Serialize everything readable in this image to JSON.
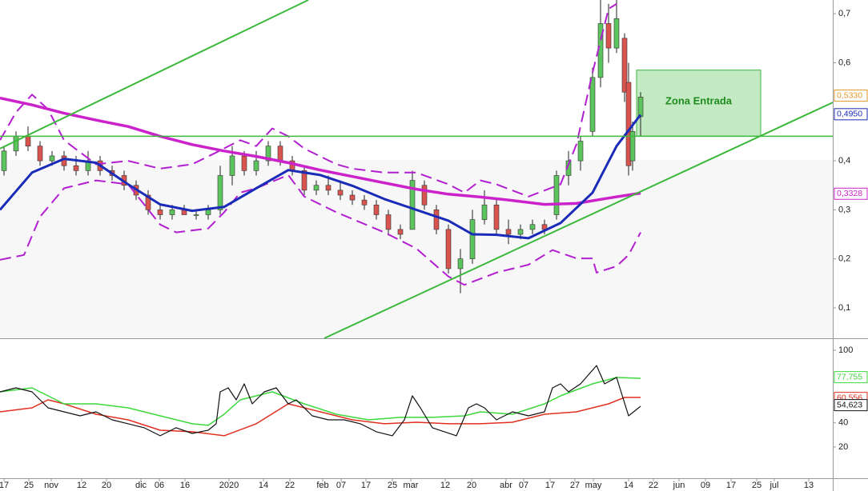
{
  "chart_data": [
    {
      "type": "candlestick",
      "xlim": [
        0,
        208
      ],
      "ylim": [
        0.038,
        0.728
      ],
      "yticks": [
        {
          "value": 0.7,
          "label": "0,7"
        },
        {
          "value": 0.6,
          "label": "0,6"
        },
        {
          "value": 0.4,
          "label": "0,4"
        },
        {
          "value": 0.3,
          "label": "0,3"
        },
        {
          "value": 0.2,
          "label": "0,2"
        },
        {
          "value": 0.1,
          "label": "0,1"
        }
      ],
      "candles": {
        "up_color": "#5cc45c",
        "down_color": "#d9534f",
        "x": [
          1,
          4,
          7,
          10,
          13,
          16,
          19,
          22,
          25,
          28,
          31,
          34,
          37,
          40,
          43,
          46,
          49,
          52,
          55,
          58,
          61,
          64,
          67,
          70,
          73,
          76,
          79,
          82,
          85,
          88,
          91,
          94,
          97,
          100,
          103,
          106,
          109,
          112,
          115,
          118,
          121,
          124,
          127,
          130,
          133,
          136,
          139,
          142,
          145,
          148,
          150,
          152,
          154,
          156,
          157,
          158,
          160
        ],
        "open": [
          0.38,
          0.42,
          0.45,
          0.43,
          0.4,
          0.41,
          0.39,
          0.38,
          0.4,
          0.38,
          0.37,
          0.35,
          0.33,
          0.3,
          0.29,
          0.3,
          0.29,
          0.29,
          0.3,
          0.37,
          0.41,
          0.38,
          0.4,
          0.43,
          0.4,
          0.38,
          0.34,
          0.35,
          0.34,
          0.33,
          0.32,
          0.31,
          0.29,
          0.26,
          0.26,
          0.35,
          0.3,
          0.26,
          0.18,
          0.2,
          0.28,
          0.31,
          0.26,
          0.25,
          0.26,
          0.27,
          0.29,
          0.37,
          0.4,
          0.46,
          0.57,
          0.68,
          0.63,
          0.65,
          0.56,
          0.4,
          0.49
        ],
        "high": [
          0.43,
          0.46,
          0.47,
          0.44,
          0.42,
          0.42,
          0.41,
          0.42,
          0.41,
          0.39,
          0.38,
          0.36,
          0.34,
          0.31,
          0.31,
          0.31,
          0.3,
          0.31,
          0.39,
          0.43,
          0.42,
          0.42,
          0.44,
          0.44,
          0.41,
          0.39,
          0.36,
          0.37,
          0.36,
          0.34,
          0.33,
          0.32,
          0.3,
          0.27,
          0.38,
          0.36,
          0.31,
          0.27,
          0.22,
          0.3,
          0.34,
          0.32,
          0.28,
          0.27,
          0.28,
          0.28,
          0.38,
          0.42,
          0.45,
          0.59,
          0.73,
          0.72,
          0.74,
          0.66,
          0.6,
          0.48,
          0.54
        ],
        "low": [
          0.37,
          0.41,
          0.42,
          0.39,
          0.39,
          0.38,
          0.37,
          0.37,
          0.37,
          0.36,
          0.34,
          0.32,
          0.29,
          0.28,
          0.28,
          0.29,
          0.28,
          0.28,
          0.29,
          0.35,
          0.37,
          0.37,
          0.39,
          0.39,
          0.37,
          0.33,
          0.33,
          0.33,
          0.32,
          0.31,
          0.3,
          0.28,
          0.25,
          0.24,
          0.26,
          0.3,
          0.25,
          0.17,
          0.13,
          0.19,
          0.27,
          0.25,
          0.23,
          0.24,
          0.25,
          0.25,
          0.28,
          0.35,
          0.38,
          0.45,
          0.55,
          0.6,
          0.62,
          0.52,
          0.37,
          0.38,
          0.45
        ],
        "close": [
          0.42,
          0.45,
          0.43,
          0.4,
          0.41,
          0.39,
          0.38,
          0.4,
          0.38,
          0.37,
          0.35,
          0.33,
          0.3,
          0.29,
          0.3,
          0.29,
          0.29,
          0.3,
          0.37,
          0.41,
          0.38,
          0.4,
          0.43,
          0.4,
          0.38,
          0.34,
          0.35,
          0.34,
          0.33,
          0.32,
          0.31,
          0.29,
          0.26,
          0.25,
          0.36,
          0.31,
          0.26,
          0.18,
          0.2,
          0.28,
          0.31,
          0.26,
          0.25,
          0.26,
          0.27,
          0.26,
          0.37,
          0.4,
          0.44,
          0.57,
          0.68,
          0.63,
          0.69,
          0.54,
          0.39,
          0.46,
          0.53
        ]
      },
      "series": [
        {
          "color": "#b21fd0",
          "width": 2,
          "dash": true,
          "x": [
            0,
            4,
            8,
            12,
            16,
            24,
            32,
            40,
            48,
            54,
            60,
            64,
            68,
            72,
            76,
            84,
            88,
            96,
            104,
            112,
            116,
            120,
            124,
            132,
            140,
            144,
            148,
            152,
            154
          ],
          "values": [
            0.442,
            0.499,
            0.535,
            0.505,
            0.442,
            0.393,
            0.4,
            0.384,
            0.393,
            0.417,
            0.442,
            0.43,
            0.466,
            0.45,
            0.425,
            0.393,
            0.384,
            0.376,
            0.376,
            0.352,
            0.335,
            0.36,
            0.352,
            0.327,
            0.352,
            0.434,
            0.58,
            0.71,
            0.72
          ]
        },
        {
          "color": "#b21fd0",
          "width": 2,
          "dash": true,
          "x": [
            0,
            6,
            10,
            16,
            24,
            32,
            40,
            44,
            52,
            56,
            60,
            64,
            72,
            76,
            84,
            96,
            104,
            112,
            116,
            124,
            132,
            138,
            144,
            148,
            149,
            154,
            157,
            160
          ],
          "values": [
            0.198,
            0.208,
            0.286,
            0.344,
            0.36,
            0.352,
            0.27,
            0.254,
            0.262,
            0.295,
            0.335,
            0.344,
            0.371,
            0.327,
            0.295,
            0.254,
            0.221,
            0.164,
            0.147,
            0.172,
            0.188,
            0.218,
            0.201,
            0.201,
            0.172,
            0.185,
            0.208,
            0.254
          ]
        },
        {
          "color": "#cc22cc",
          "width": 3.5,
          "dash": false,
          "x": [
            0,
            8,
            16,
            24,
            32,
            40,
            48,
            56,
            64,
            72,
            80,
            88,
            96,
            104,
            112,
            120,
            128,
            136,
            144,
            152,
            160
          ],
          "values": [
            0.528,
            0.514,
            0.497,
            0.483,
            0.47,
            0.45,
            0.433,
            0.42,
            0.409,
            0.396,
            0.381,
            0.368,
            0.355,
            0.342,
            0.332,
            0.326,
            0.319,
            0.311,
            0.313,
            0.324,
            0.334
          ]
        },
        {
          "color": "#1a2bb8",
          "width": 3,
          "dash": false,
          "x": [
            0,
            8,
            16,
            24,
            32,
            40,
            48,
            56,
            64,
            72,
            80,
            88,
            96,
            104,
            112,
            118,
            124,
            132,
            140,
            148,
            154,
            160
          ],
          "values": [
            0.3,
            0.376,
            0.404,
            0.396,
            0.352,
            0.311,
            0.298,
            0.306,
            0.344,
            0.381,
            0.371,
            0.349,
            0.322,
            0.3,
            0.278,
            0.25,
            0.249,
            0.242,
            0.273,
            0.335,
            0.43,
            0.494
          ]
        },
        {
          "color": "#3cb83c",
          "width": 2,
          "dash": false,
          "x": [
            0,
            77
          ],
          "values": [
            0.425,
            0.728
          ]
        },
        {
          "color": "#3cb83c",
          "width": 2,
          "dash": false,
          "x": [
            81,
            208
          ],
          "values": [
            0.038,
            0.519
          ]
        },
        {
          "color": "#3cb83c",
          "width": 1.5,
          "dash": false,
          "x": [
            0,
            208
          ],
          "values": [
            0.45,
            0.45
          ]
        }
      ],
      "zone": {
        "label": "Zona Entrada",
        "x": [
          159,
          190
        ],
        "y": [
          0.45,
          0.585
        ],
        "color": "#3cb83c"
      },
      "price_tags": [
        {
          "label": "0,5330",
          "value": 0.533,
          "color": "#e09a2a"
        },
        {
          "label": "0,4950",
          "value": 0.495,
          "color": "#1a2bb8"
        },
        {
          "label": "0,3328",
          "value": 0.3328,
          "color": "#cc22cc"
        }
      ]
    },
    {
      "type": "line",
      "xlim": [
        0,
        208
      ],
      "ylim": [
        -5.8,
        108.6
      ],
      "yticks": [
        100,
        40,
        20
      ],
      "xticks": [
        {
          "value": 1,
          "label": "17"
        },
        {
          "value": 7.2,
          "label": "25"
        },
        {
          "value": 12.8,
          "label": "nov"
        },
        {
          "value": 20.4,
          "label": "12"
        },
        {
          "value": 26.6,
          "label": "20"
        },
        {
          "value": 35.2,
          "label": "dic"
        },
        {
          "value": 39.8,
          "label": "06"
        },
        {
          "value": 46.2,
          "label": "16"
        },
        {
          "value": 57.2,
          "label": "2020"
        },
        {
          "value": 65.8,
          "label": "14"
        },
        {
          "value": 72.4,
          "label": "22"
        },
        {
          "value": 80.6,
          "label": "feb"
        },
        {
          "value": 85.2,
          "label": "07"
        },
        {
          "value": 91.4,
          "label": "17"
        },
        {
          "value": 98,
          "label": "25"
        },
        {
          "value": 102.6,
          "label": "mar"
        },
        {
          "value": 111.2,
          "label": "12"
        },
        {
          "value": 117.8,
          "label": "20"
        },
        {
          "value": 126.4,
          "label": "abr"
        },
        {
          "value": 130.8,
          "label": "07"
        },
        {
          "value": 137.4,
          "label": "17"
        },
        {
          "value": 143.6,
          "label": "27"
        },
        {
          "value": 148.2,
          "label": "may"
        },
        {
          "value": 157,
          "label": "14"
        },
        {
          "value": 163.2,
          "label": "22"
        },
        {
          "value": 169.6,
          "label": "jun"
        },
        {
          "value": 176.2,
          "label": "09"
        },
        {
          "value": 182.6,
          "label": "17"
        },
        {
          "value": 189,
          "label": "25"
        },
        {
          "value": 193.4,
          "label": "jul"
        },
        {
          "value": 202,
          "label": "13"
        }
      ],
      "series": [
        {
          "color": "#e03020",
          "width": 1.5,
          "x": [
            0,
            8,
            12,
            16,
            24,
            32,
            40,
            48,
            56,
            64,
            72,
            80,
            88,
            96,
            104,
            112,
            120,
            128,
            136,
            144,
            152,
            156,
            160
          ],
          "values": [
            49.1,
            52.4,
            59,
            55.7,
            47.1,
            42.5,
            33.9,
            32.6,
            29.3,
            39.2,
            55.7,
            49.1,
            42.5,
            39.2,
            40.5,
            39.2,
            39.2,
            40.5,
            47.1,
            49.1,
            55.7,
            61,
            61
          ]
        },
        {
          "color": "#3cd83c",
          "width": 1.5,
          "x": [
            0,
            8,
            16,
            24,
            32,
            40,
            48,
            52,
            56,
            60,
            68,
            76,
            84,
            92,
            100,
            108,
            116,
            120,
            128,
            136,
            140,
            148,
            154,
            160
          ],
          "values": [
            65.6,
            68.9,
            55.7,
            55.7,
            52.4,
            45.8,
            39.2,
            37.9,
            47.1,
            59,
            65.6,
            55.7,
            47.1,
            42.5,
            44.5,
            44.5,
            45.8,
            49.1,
            47.1,
            55.7,
            62.3,
            72.2,
            77.5,
            76.8
          ]
        },
        {
          "color": "#111111",
          "width": 1.2,
          "x": [
            0,
            4,
            8,
            12,
            16,
            20,
            24,
            28,
            32,
            36,
            40,
            44,
            48,
            52,
            54,
            55,
            57,
            59,
            61,
            63,
            66,
            69,
            72,
            74,
            78,
            82,
            86,
            90,
            94,
            98,
            101,
            103,
            105,
            108,
            111,
            114,
            117,
            119,
            121,
            124,
            128,
            132,
            136,
            138,
            140,
            142,
            145,
            149,
            151,
            154,
            157,
            160
          ],
          "values": [
            65.6,
            68.9,
            65.6,
            52.4,
            49.1,
            45.8,
            49.1,
            42.5,
            39.2,
            35.9,
            29.3,
            35.9,
            31.2,
            33.9,
            39.2,
            65.6,
            68.9,
            59,
            72.2,
            55.7,
            65.6,
            68.9,
            55.7,
            59,
            45.8,
            42.5,
            42.5,
            39.2,
            32.6,
            29.3,
            42.5,
            62.3,
            52.4,
            35.9,
            32.6,
            29.3,
            52.4,
            55.7,
            52.4,
            42.5,
            49.1,
            45.8,
            49.1,
            68.9,
            72.2,
            65.6,
            72.2,
            87.4,
            72.2,
            77.5,
            45.8,
            53.7
          ]
        }
      ],
      "value_tags": [
        {
          "label": "77,755",
          "value": 77.755,
          "color": "#3cd83c"
        },
        {
          "label": "60,556",
          "value": 60.556,
          "color": "#e03020"
        },
        {
          "label": "54,623",
          "value": 54.623,
          "color": "#111111"
        }
      ]
    }
  ]
}
